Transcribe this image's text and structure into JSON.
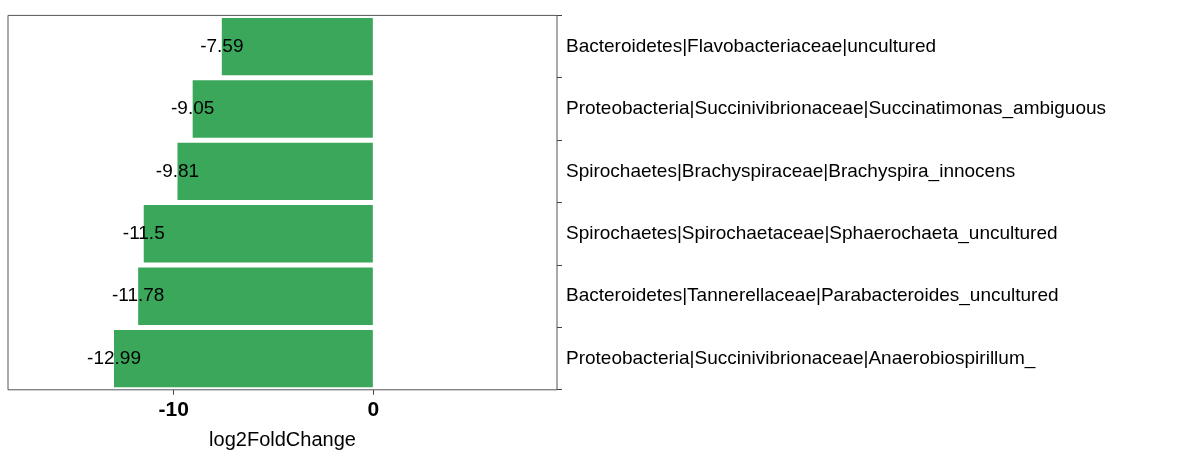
{
  "chart_data": {
    "type": "bar",
    "orientation": "horizontal",
    "xlabel": "log2FoldChange",
    "categories": [
      "Bacteroidetes|Flavobacteriaceae|uncultured",
      "Proteobacteria|Succinivibrionaceae|Succinatimonas_ambiguous",
      "Spirochaetes|Brachyspiraceae|Brachyspira_innocens",
      "Spirochaetes|Spirochaetaceae|Sphaerochaeta_uncultured",
      "Bacteroidetes|Tannerellaceae|Parabacteroides_uncultured",
      "Proteobacteria|Succinivibrionaceae|Anaerobiospirillum_"
    ],
    "values": [
      -7.59,
      -9.05,
      -9.81,
      -11.5,
      -11.78,
      -12.99
    ],
    "color": "#3aa75b",
    "xlim": [
      -18.3,
      9.2
    ],
    "xticks": [
      -10,
      0
    ],
    "data_labels": true,
    "grid": false,
    "legend": false
  }
}
